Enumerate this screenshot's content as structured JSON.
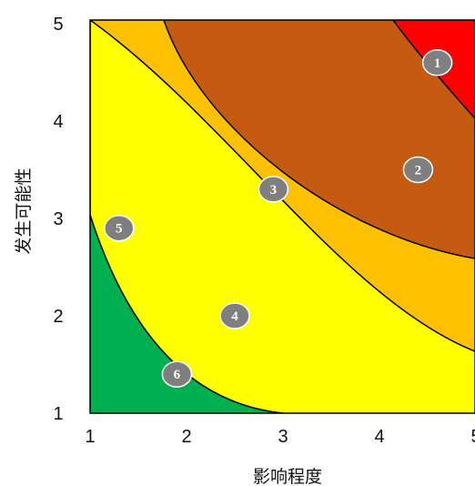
{
  "chart_data": {
    "type": "scatter",
    "title": "",
    "xlabel": "影响程度",
    "ylabel": "发生可能性",
    "xlim": [
      1,
      5
    ],
    "ylim": [
      1,
      5
    ],
    "xticks": [
      "1",
      "2",
      "3",
      "4",
      "5"
    ],
    "yticks": [
      "1",
      "2",
      "3",
      "4",
      "5"
    ],
    "grid": false,
    "zones": [
      {
        "color": "#00b050"
      },
      {
        "color": "#ffff00"
      },
      {
        "color": "#ffc000"
      },
      {
        "color": "#c55a11"
      },
      {
        "color": "#ff0000"
      }
    ],
    "points": [
      {
        "label": "1",
        "x": 4.6,
        "y": 4.6
      },
      {
        "label": "2",
        "x": 4.4,
        "y": 3.5
      },
      {
        "label": "3",
        "x": 2.9,
        "y": 3.3
      },
      {
        "label": "4",
        "x": 2.5,
        "y": 2.0
      },
      {
        "label": "5",
        "x": 1.3,
        "y": 2.9
      },
      {
        "label": "6",
        "x": 1.9,
        "y": 1.4
      }
    ],
    "marker_color": "#7f7f7f"
  }
}
